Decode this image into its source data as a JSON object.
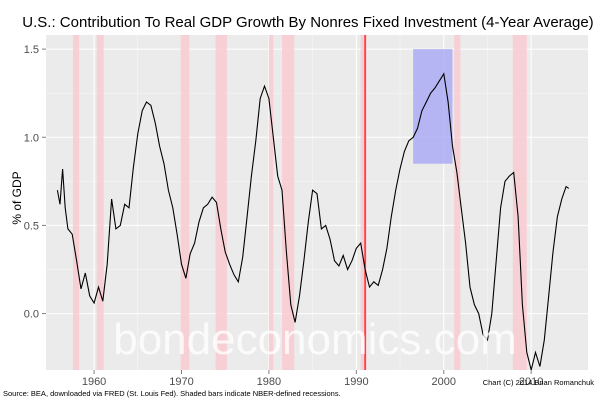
{
  "chart_data": {
    "type": "line",
    "title": "U.S.: Contribution To Real GDP Growth By Nonres Fixed Investment (4-Year Average)",
    "ylabel": "% of GDP",
    "xlabel": "",
    "xlim": [
      1954.5,
      2016.5
    ],
    "ylim": [
      -0.32,
      1.58
    ],
    "x_ticks": [
      1960,
      1970,
      1980,
      1990,
      2000,
      2010
    ],
    "y_ticks": [
      0.0,
      0.5,
      1.0,
      1.5
    ],
    "y_tick_labels": [
      "0.0",
      "0.5",
      "1.0",
      "1.5"
    ],
    "grid": true,
    "legend": "none",
    "colors": {
      "panel": "#ebebeb",
      "grid": "#ffffff",
      "line": "#000000",
      "recession": "#f8cdd3",
      "vline": "#ff0000",
      "highlight": "#a3a3f5"
    },
    "recessions": [
      [
        1957.6,
        1958.3
      ],
      [
        1960.3,
        1961.1
      ],
      [
        1969.9,
        1970.9
      ],
      [
        1973.9,
        1975.2
      ],
      [
        1980.0,
        1980.5
      ],
      [
        1981.5,
        1982.9
      ],
      [
        1990.5,
        1991.2
      ],
      [
        2001.2,
        2001.9
      ],
      [
        2007.9,
        2009.5
      ]
    ],
    "vline_x": 1991.0,
    "highlight_box": {
      "x": [
        1996.5,
        2001.0
      ],
      "y": [
        0.85,
        1.5
      ]
    },
    "series": [
      {
        "points": [
          [
            1955.8,
            0.7
          ],
          [
            1956.1,
            0.62
          ],
          [
            1956.4,
            0.82
          ],
          [
            1956.7,
            0.6
          ],
          [
            1957.0,
            0.48
          ],
          [
            1957.5,
            0.45
          ],
          [
            1958.0,
            0.3
          ],
          [
            1958.5,
            0.14
          ],
          [
            1959.0,
            0.23
          ],
          [
            1959.5,
            0.1
          ],
          [
            1960.0,
            0.06
          ],
          [
            1960.5,
            0.15
          ],
          [
            1961.0,
            0.07
          ],
          [
            1961.5,
            0.28
          ],
          [
            1962.0,
            0.65
          ],
          [
            1962.5,
            0.48
          ],
          [
            1963.0,
            0.5
          ],
          [
            1963.5,
            0.62
          ],
          [
            1964.0,
            0.6
          ],
          [
            1964.5,
            0.83
          ],
          [
            1965.0,
            1.02
          ],
          [
            1965.5,
            1.15
          ],
          [
            1966.0,
            1.2
          ],
          [
            1966.5,
            1.18
          ],
          [
            1967.0,
            1.08
          ],
          [
            1967.5,
            0.95
          ],
          [
            1968.0,
            0.85
          ],
          [
            1968.5,
            0.7
          ],
          [
            1969.0,
            0.6
          ],
          [
            1969.5,
            0.45
          ],
          [
            1970.0,
            0.28
          ],
          [
            1970.5,
            0.2
          ],
          [
            1971.0,
            0.34
          ],
          [
            1971.5,
            0.4
          ],
          [
            1972.0,
            0.52
          ],
          [
            1972.5,
            0.6
          ],
          [
            1973.0,
            0.62
          ],
          [
            1973.5,
            0.66
          ],
          [
            1974.0,
            0.63
          ],
          [
            1974.5,
            0.48
          ],
          [
            1975.0,
            0.35
          ],
          [
            1975.5,
            0.28
          ],
          [
            1976.0,
            0.22
          ],
          [
            1976.5,
            0.18
          ],
          [
            1977.0,
            0.32
          ],
          [
            1977.5,
            0.55
          ],
          [
            1978.0,
            0.78
          ],
          [
            1978.5,
            0.98
          ],
          [
            1979.0,
            1.22
          ],
          [
            1979.5,
            1.29
          ],
          [
            1980.0,
            1.22
          ],
          [
            1980.5,
            1.0
          ],
          [
            1981.0,
            0.78
          ],
          [
            1981.5,
            0.7
          ],
          [
            1982.0,
            0.35
          ],
          [
            1982.5,
            0.05
          ],
          [
            1983.0,
            -0.05
          ],
          [
            1983.5,
            0.1
          ],
          [
            1984.0,
            0.3
          ],
          [
            1984.5,
            0.52
          ],
          [
            1985.0,
            0.7
          ],
          [
            1985.5,
            0.68
          ],
          [
            1986.0,
            0.48
          ],
          [
            1986.5,
            0.5
          ],
          [
            1987.0,
            0.42
          ],
          [
            1987.5,
            0.3
          ],
          [
            1988.0,
            0.27
          ],
          [
            1988.5,
            0.33
          ],
          [
            1989.0,
            0.25
          ],
          [
            1989.5,
            0.3
          ],
          [
            1990.0,
            0.37
          ],
          [
            1990.5,
            0.4
          ],
          [
            1991.0,
            0.25
          ],
          [
            1991.5,
            0.15
          ],
          [
            1992.0,
            0.18
          ],
          [
            1992.5,
            0.16
          ],
          [
            1993.0,
            0.25
          ],
          [
            1993.5,
            0.37
          ],
          [
            1994.0,
            0.55
          ],
          [
            1994.5,
            0.7
          ],
          [
            1995.0,
            0.82
          ],
          [
            1995.5,
            0.92
          ],
          [
            1996.0,
            0.98
          ],
          [
            1996.5,
            1.0
          ],
          [
            1997.0,
            1.05
          ],
          [
            1997.5,
            1.15
          ],
          [
            1998.0,
            1.2
          ],
          [
            1998.5,
            1.25
          ],
          [
            1999.0,
            1.28
          ],
          [
            1999.5,
            1.32
          ],
          [
            2000.0,
            1.36
          ],
          [
            2000.5,
            1.2
          ],
          [
            2001.0,
            0.95
          ],
          [
            2001.5,
            0.8
          ],
          [
            2002.0,
            0.6
          ],
          [
            2002.5,
            0.4
          ],
          [
            2003.0,
            0.15
          ],
          [
            2003.5,
            0.05
          ],
          [
            2004.0,
            0.0
          ],
          [
            2004.5,
            -0.12
          ],
          [
            2005.0,
            -0.15
          ],
          [
            2005.5,
            0.0
          ],
          [
            2006.0,
            0.3
          ],
          [
            2006.5,
            0.6
          ],
          [
            2007.0,
            0.75
          ],
          [
            2007.5,
            0.78
          ],
          [
            2008.0,
            0.8
          ],
          [
            2008.5,
            0.55
          ],
          [
            2009.0,
            0.05
          ],
          [
            2009.5,
            -0.22
          ],
          [
            2010.0,
            -0.32
          ],
          [
            2010.5,
            -0.22
          ],
          [
            2011.0,
            -0.3
          ],
          [
            2011.5,
            -0.15
          ],
          [
            2012.0,
            0.1
          ],
          [
            2012.5,
            0.35
          ],
          [
            2013.0,
            0.55
          ],
          [
            2013.5,
            0.65
          ],
          [
            2014.0,
            0.72
          ],
          [
            2014.3,
            0.71
          ]
        ]
      }
    ],
    "watermark": "bondeconomics.com",
    "source_note": "Source: BEA, downloaded via FRED (St. Louis Fed). Shaded bars indicate NBER-defined recessions.",
    "credit_note": "Chart (C) 2014 Brian Romanchuk"
  }
}
